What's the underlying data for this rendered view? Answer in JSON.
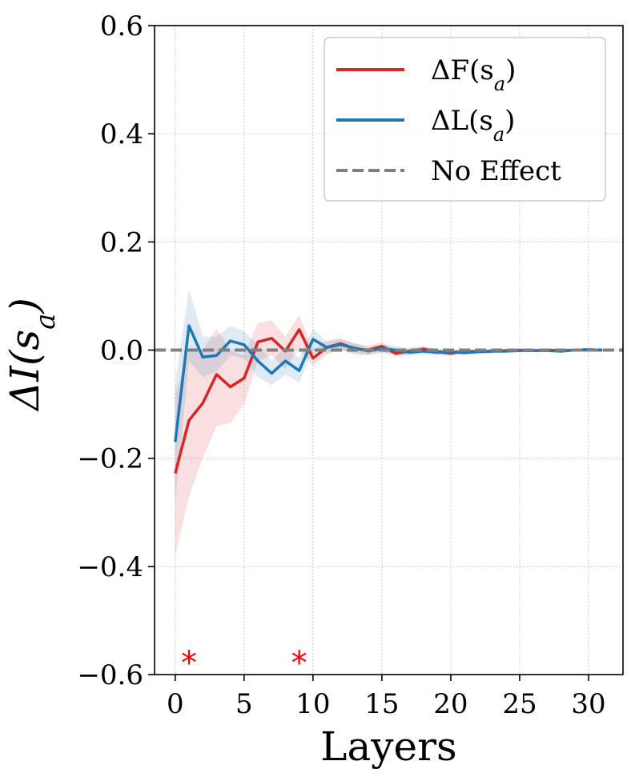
{
  "chart_data": {
    "type": "line",
    "title": "",
    "xlabel": "Layers",
    "ylabel": "ΔI(s_a)",
    "xlim": [
      -1.5,
      32.5
    ],
    "ylim": [
      -0.6,
      0.6
    ],
    "grid": true,
    "legend_position": "top-right",
    "x_ticks": [
      0,
      5,
      10,
      15,
      20,
      25,
      30
    ],
    "x_tick_labels": [
      "0",
      "5",
      "10",
      "15",
      "20",
      "25",
      "30"
    ],
    "y_ticks": [
      -0.6,
      -0.4,
      -0.2,
      0.0,
      0.2,
      0.4,
      0.6
    ],
    "y_tick_labels": [
      "−0.6",
      "−0.4",
      "−0.2",
      "0.0",
      "0.2",
      "0.4",
      "0.6"
    ],
    "x": [
      0,
      1,
      2,
      3,
      4,
      5,
      6,
      7,
      8,
      9,
      10,
      11,
      12,
      13,
      14,
      15,
      16,
      17,
      18,
      19,
      20,
      21,
      22,
      23,
      24,
      25,
      26,
      27,
      28,
      29,
      30,
      31
    ],
    "series": [
      {
        "name": "ΔF(s_a)",
        "legend_main": "ΔF(s",
        "legend_sub": "a",
        "legend_close": ")",
        "color": "#d62728",
        "values": [
          -0.228,
          -0.13,
          -0.098,
          -0.045,
          -0.068,
          -0.052,
          0.015,
          0.022,
          -0.002,
          0.038,
          -0.015,
          0.005,
          0.012,
          0.003,
          0.0,
          0.007,
          -0.006,
          -0.002,
          0.002,
          -0.003,
          -0.006,
          -0.002,
          -0.003,
          -0.002,
          -0.001,
          0.0,
          -0.001,
          0.0,
          -0.001,
          0.0,
          0.001,
          0.0
        ],
        "lower": [
          -0.38,
          -0.27,
          -0.2,
          -0.14,
          -0.135,
          -0.1,
          -0.02,
          -0.01,
          -0.035,
          0.005,
          -0.03,
          -0.008,
          0.0,
          -0.008,
          -0.008,
          -0.002,
          -0.012,
          -0.008,
          -0.004,
          -0.008,
          -0.01,
          -0.006,
          -0.006,
          -0.005,
          -0.004,
          -0.003,
          -0.003,
          -0.003,
          -0.003,
          -0.002,
          -0.002,
          -0.002
        ],
        "upper": [
          -0.08,
          0.0,
          0.0,
          0.04,
          0.0,
          -0.01,
          0.05,
          0.055,
          0.025,
          0.065,
          0.0,
          0.018,
          0.022,
          0.012,
          0.008,
          0.015,
          0.0,
          0.004,
          0.008,
          0.002,
          -0.002,
          0.002,
          0.0,
          0.001,
          0.002,
          0.003,
          0.002,
          0.003,
          0.002,
          0.002,
          0.004,
          0.002
        ]
      },
      {
        "name": "ΔL(s_a)",
        "legend_main": "ΔL(s",
        "legend_sub": "a",
        "legend_close": ")",
        "color": "#1f77b4",
        "values": [
          -0.17,
          0.045,
          -0.013,
          -0.01,
          0.017,
          0.01,
          -0.02,
          -0.043,
          -0.02,
          -0.038,
          0.02,
          0.005,
          0.01,
          0.004,
          -0.002,
          0.003,
          0.0,
          -0.004,
          -0.002,
          -0.004,
          -0.003,
          -0.005,
          -0.003,
          -0.002,
          -0.002,
          -0.001,
          -0.001,
          -0.001,
          -0.002,
          0.0,
          0.0,
          0.0
        ],
        "lower": [
          -0.28,
          -0.02,
          -0.05,
          -0.04,
          -0.01,
          -0.015,
          -0.05,
          -0.065,
          -0.045,
          -0.06,
          0.0,
          -0.005,
          0.0,
          -0.005,
          -0.01,
          -0.005,
          -0.008,
          -0.01,
          -0.008,
          -0.01,
          -0.008,
          -0.009,
          -0.007,
          -0.006,
          -0.005,
          -0.004,
          -0.004,
          -0.004,
          -0.005,
          -0.003,
          -0.003,
          -0.003
        ],
        "upper": [
          -0.06,
          0.112,
          0.025,
          0.025,
          0.045,
          0.035,
          0.01,
          -0.02,
          0.005,
          -0.015,
          0.04,
          0.015,
          0.02,
          0.013,
          0.006,
          0.011,
          0.008,
          0.002,
          0.004,
          0.002,
          0.002,
          -0.001,
          0.001,
          0.002,
          0.001,
          0.002,
          0.002,
          0.002,
          0.001,
          0.003,
          0.003,
          0.003
        ]
      }
    ],
    "reference_line": {
      "name": "No Effect",
      "y": 0.0,
      "color": "#808080",
      "style": "dashed"
    },
    "annotations": [
      {
        "text": "*",
        "x": 1,
        "y": -0.56,
        "color": "#ff0000"
      },
      {
        "text": "*",
        "x": 9,
        "y": -0.56,
        "color": "#ff0000"
      }
    ]
  }
}
